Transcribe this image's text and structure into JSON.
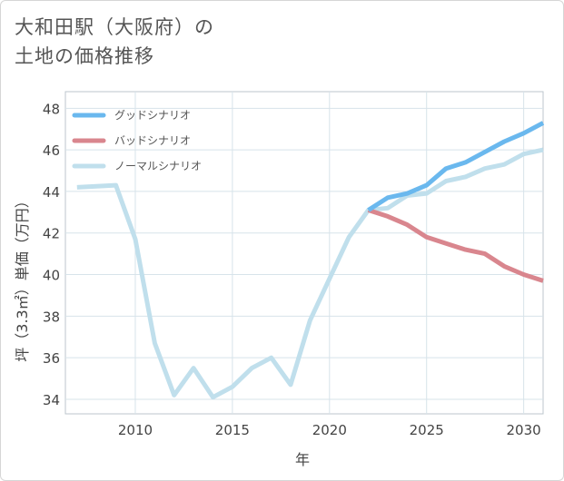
{
  "title": {
    "line1": "大和田駅（大阪府）の",
    "line2": "土地の価格推移"
  },
  "colors": {
    "good": "#6ab8ee",
    "bad": "#d9868e",
    "normal": "#c0dfec",
    "grid": "#d7e3ea"
  },
  "chart_data": {
    "type": "line",
    "xlabel": "年",
    "ylabel": "坪（3.3㎡）単価（万円）",
    "xlim": [
      2006.4,
      2031
    ],
    "ylim": [
      33.3,
      48.8
    ],
    "xticks": [
      2010,
      2015,
      2020,
      2025,
      2030
    ],
    "yticks": [
      34,
      36,
      38,
      40,
      42,
      44,
      46,
      48
    ],
    "grid": true,
    "legend_position": "top-left",
    "series": [
      {
        "name": "グッドシナリオ",
        "key": "good",
        "x": [
          2022,
          2023,
          2024,
          2025,
          2026,
          2027,
          2028,
          2029,
          2030,
          2031
        ],
        "y": [
          43.1,
          43.7,
          43.9,
          44.3,
          45.1,
          45.4,
          45.9,
          46.4,
          46.8,
          47.3
        ]
      },
      {
        "name": "バッドシナリオ",
        "key": "bad",
        "x": [
          2022,
          2023,
          2024,
          2025,
          2026,
          2027,
          2028,
          2029,
          2030,
          2031
        ],
        "y": [
          43.1,
          42.8,
          42.4,
          41.8,
          41.5,
          41.2,
          41.0,
          40.4,
          40.0,
          39.7
        ]
      },
      {
        "name": "ノーマルシナリオ",
        "key": "normal",
        "x": [
          2007,
          2008,
          2009,
          2010,
          2011,
          2012,
          2013,
          2014,
          2015,
          2016,
          2017,
          2018,
          2019,
          2020,
          2021,
          2022,
          2023,
          2024,
          2025,
          2026,
          2027,
          2028,
          2029,
          2030,
          2031
        ],
        "y": [
          44.2,
          44.25,
          44.3,
          41.7,
          36.7,
          34.2,
          35.5,
          34.1,
          34.6,
          35.5,
          36.0,
          34.7,
          37.8,
          39.8,
          41.8,
          43.1,
          43.2,
          43.8,
          43.9,
          44.5,
          44.7,
          45.1,
          45.3,
          45.8,
          46.0
        ]
      }
    ]
  }
}
